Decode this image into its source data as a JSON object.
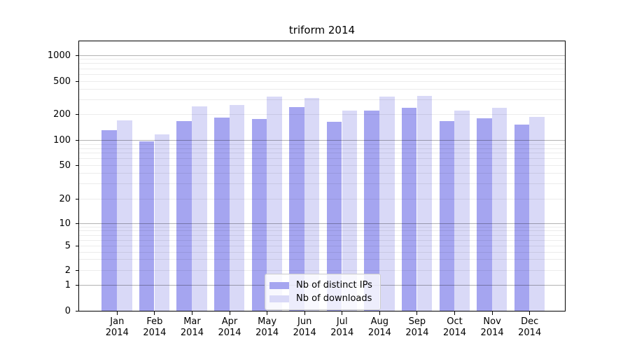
{
  "chart_data": {
    "type": "bar",
    "title": "triform 2014",
    "categories": [
      "Jan",
      "Feb",
      "Mar",
      "Apr",
      "May",
      "Jun",
      "Jul",
      "Aug",
      "Sep",
      "Oct",
      "Nov",
      "Dec"
    ],
    "category_year": "2014",
    "series": [
      {
        "name": "Nb of distinct IPs",
        "color": "#a5a5f0",
        "values": [
          131,
          97,
          167,
          184,
          176,
          243,
          164,
          222,
          240,
          167,
          180,
          154
        ]
      },
      {
        "name": "Nb of downloads",
        "color": "#d9d9f7",
        "values": [
          170,
          117,
          251,
          261,
          326,
          313,
          223,
          330,
          334,
          222,
          240,
          188
        ]
      }
    ],
    "y_ticks": [
      0,
      1,
      2,
      5,
      10,
      20,
      50,
      100,
      200,
      500,
      1000
    ],
    "yscale": "symlog",
    "ylim": [
      0,
      1500
    ],
    "xlabel": "",
    "ylabel": "",
    "grid": true,
    "legend_position": "bottom-center"
  }
}
